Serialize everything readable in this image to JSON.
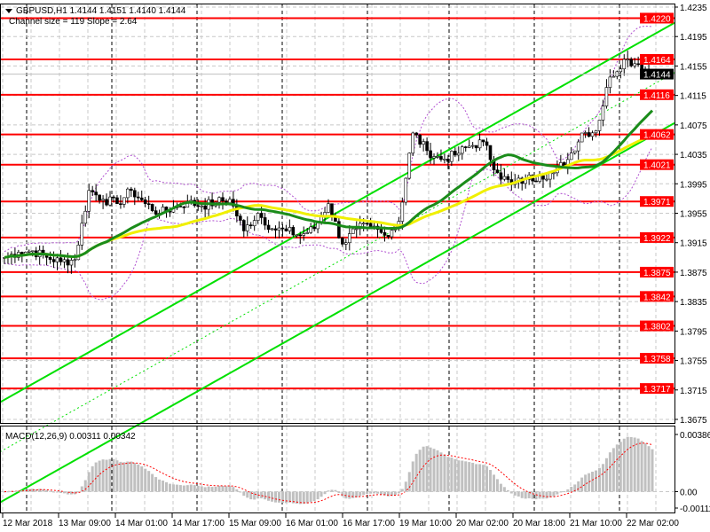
{
  "header": {
    "symbol_line": "GBPUSD,H1  1.4144 1.4151 1.4140 1.4144",
    "channel_info": "Channel size = 119 Slope = 2.64"
  },
  "macd": {
    "label": "MACD(12,26,9) 0.00311 0.00342",
    "axis_ticks": [
      "0.00386",
      "0.00",
      "-0.00111"
    ],
    "axis_values": [
      0.00386,
      0.0,
      -0.00111
    ]
  },
  "colors": {
    "level": "#ff0000",
    "channel": "#00e000",
    "ma_fast": "#1a8c1a",
    "ma_slow": "#f0f000",
    "bands": "#b050d0",
    "macd_hist": "#c0c0c0",
    "macd_signal": "#ff0000",
    "current_price_bg": "#000000"
  },
  "chart_data": {
    "type": "candlestick",
    "symbol": "GBPUSD",
    "timeframe": "H1",
    "ylim": [
      1.3675,
      1.4235
    ],
    "price_ticks": [
      "1.4235",
      "1.4195",
      "1.4155",
      "1.4115",
      "1.4075",
      "1.4035",
      "1.3995",
      "1.3955",
      "1.3915",
      "1.3875",
      "1.3835",
      "1.3795",
      "1.3755",
      "1.3715",
      "1.3675"
    ],
    "time_ticks": [
      "12 Mar 2018",
      "13 Mar 09:00",
      "14 Mar 01:00",
      "14 Mar 17:00",
      "15 Mar 09:00",
      "16 Mar 01:00",
      "16 Mar 17:00",
      "19 Mar 10:00",
      "20 Mar 02:00",
      "20 Mar 18:00",
      "21 Mar 10:00",
      "22 Mar 02:00"
    ],
    "levels": [
      "1.4220",
      "1.4164",
      "1.4116",
      "1.4062",
      "1.4021",
      "1.3971",
      "1.3922",
      "1.3875",
      "1.3842",
      "1.3802",
      "1.3758",
      "1.3717"
    ],
    "current_price": "1.4144",
    "approx_closes": [
      1.3895,
      1.3902,
      1.3904,
      1.3895,
      1.3889,
      1.3892,
      1.3986,
      1.3974,
      1.3968,
      1.3986,
      1.3968,
      1.3955,
      1.3962,
      1.397,
      1.3965,
      1.397,
      1.3974,
      1.3931,
      1.3955,
      1.3934,
      1.3931,
      1.3925,
      1.3934,
      1.3968,
      1.3913,
      1.3934,
      1.3937,
      1.3925,
      1.3944,
      1.4064,
      1.404,
      1.4028,
      1.4034,
      1.4046,
      1.4052,
      1.401,
      1.3994,
      1.4001,
      1.4006,
      1.401,
      1.4028,
      1.4064,
      1.4067,
      1.414,
      1.4164,
      1.4158,
      1.4144
    ],
    "grid": true
  }
}
